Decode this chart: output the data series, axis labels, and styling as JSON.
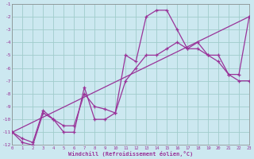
{
  "xlabel": "Windchill (Refroidissement éolien,°C)",
  "bg_color": "#cce8f0",
  "grid_color": "#a0cccc",
  "line_color": "#993399",
  "x_min": 0,
  "x_max": 23,
  "y_min": -12,
  "y_max": -1,
  "series1_x": [
    0,
    1,
    2,
    3,
    4,
    5,
    6,
    7,
    8,
    9,
    10,
    11,
    12,
    13,
    14,
    15,
    16,
    17,
    18,
    19,
    20,
    21,
    22,
    23
  ],
  "series1_y": [
    -11.0,
    -11.8,
    -12.0,
    -9.5,
    -10.0,
    -11.0,
    -11.0,
    -7.5,
    -10.0,
    -10.0,
    -9.5,
    -5.0,
    -5.5,
    -2.0,
    -1.5,
    -1.5,
    -3.0,
    -4.5,
    -4.0,
    -5.0,
    -5.5,
    -6.5,
    -7.0,
    -7.0
  ],
  "series2_x": [
    0,
    1,
    2,
    3,
    4,
    5,
    6,
    7,
    8,
    9,
    10,
    11,
    12,
    13,
    14,
    15,
    16,
    17,
    18,
    19,
    20,
    21,
    22,
    23
  ],
  "series2_y": [
    -11.0,
    -11.5,
    -11.8,
    -9.3,
    -10.0,
    -10.5,
    -10.5,
    -8.0,
    -9.0,
    -9.2,
    -9.5,
    -7.0,
    -6.0,
    -5.0,
    -5.0,
    -4.5,
    -4.0,
    -4.5,
    -4.5,
    -5.0,
    -5.0,
    -6.5,
    -6.5,
    -2.0
  ],
  "series3_x": [
    0,
    23
  ],
  "series3_y": [
    -11.0,
    -2.0
  ]
}
